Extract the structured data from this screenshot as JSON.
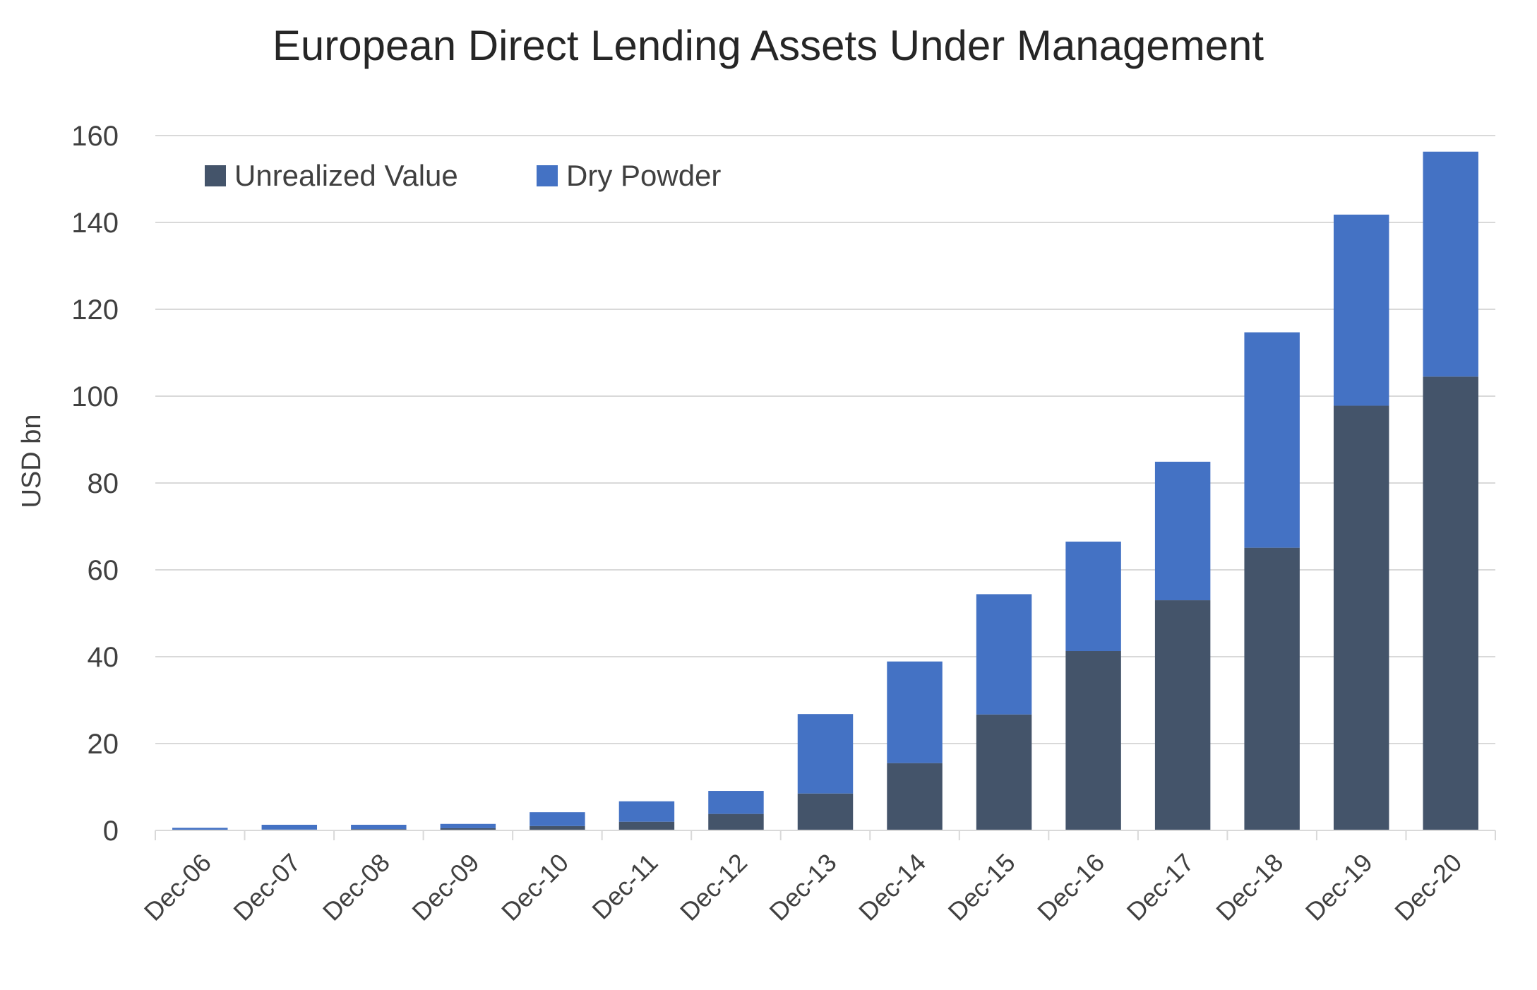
{
  "chart_data": {
    "type": "bar",
    "stacked": true,
    "title": "European Direct Lending Assets Under Management",
    "xlabel": "",
    "ylabel": "USD bn",
    "ylim": [
      0,
      160
    ],
    "yticks": [
      "0",
      "20",
      "40",
      "60",
      "80",
      "100",
      "120",
      "140",
      "160"
    ],
    "grid": true,
    "legend_position": "top-left",
    "categories": [
      "Dec-06",
      "Dec-07",
      "Dec-08",
      "Dec-09",
      "Dec-10",
      "Dec-11",
      "Dec-12",
      "Dec-13",
      "Dec-14",
      "Dec-15",
      "Dec-16",
      "Dec-17",
      "Dec-18",
      "Dec-19",
      "Dec-20"
    ],
    "series": [
      {
        "name": "Unrealized Value",
        "color": "#44546a",
        "values": [
          0.1,
          0.2,
          0.3,
          0.5,
          1.0,
          2.0,
          3.8,
          8.5,
          15.5,
          26.7,
          41.3,
          53.0,
          65.1,
          97.8,
          104.5
        ]
      },
      {
        "name": "Dry Powder",
        "color": "#4472c4",
        "values": [
          0.5,
          1.1,
          1.0,
          1.0,
          3.2,
          4.7,
          5.3,
          18.3,
          23.4,
          27.7,
          25.2,
          31.9,
          49.6,
          44.0,
          51.8
        ]
      }
    ]
  }
}
